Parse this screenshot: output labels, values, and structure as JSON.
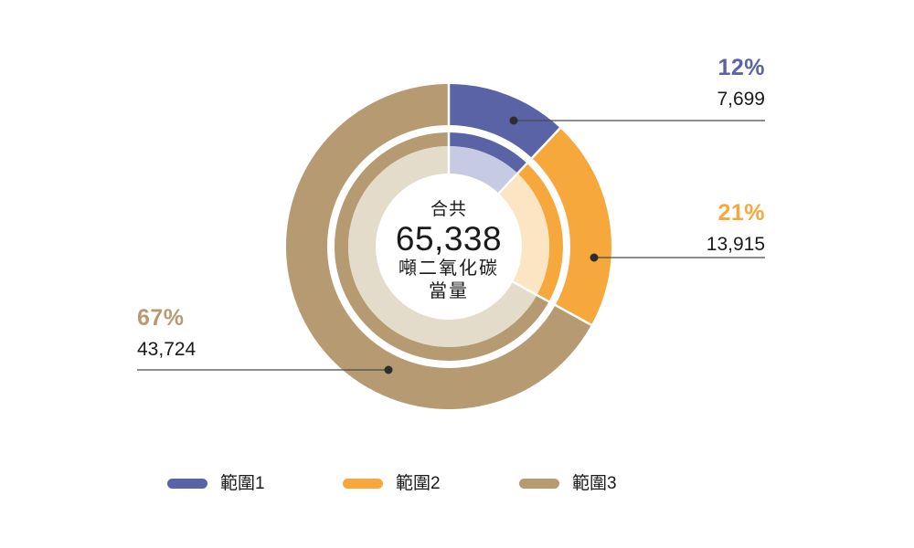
{
  "chart_data": {
    "type": "donut",
    "title": "",
    "total": 65338,
    "center": {
      "caption": "合共",
      "total_label": "65,338",
      "unit_line1": "噸二氧化碳",
      "unit_line2": "當量"
    },
    "start_angle_deg": 0,
    "direction": "clockwise",
    "legend_position": "bottom",
    "rings_note": "outer thick ring + thin middle ring in full color, inner ring in pale color, white center",
    "slices": [
      {
        "label": "範圍1",
        "percent": 12,
        "percent_label": "12%",
        "value": 7699,
        "value_label": "7,699",
        "color": "#5A63A6",
        "pale_color": "#C7CAE3"
      },
      {
        "label": "範圍2",
        "percent": 21,
        "percent_label": "21%",
        "value": 13915,
        "value_label": "13,915",
        "color": "#F6A83C",
        "pale_color": "#FCE5C2"
      },
      {
        "label": "範圍3",
        "percent": 67,
        "percent_label": "67%",
        "value": 43724,
        "value_label": "43,724",
        "color": "#B69B72",
        "pale_color": "#E4DCCB"
      }
    ]
  },
  "colors": {
    "background": "#FFFFFF",
    "text": "#1A1A1A",
    "callout_line": "#4A4A4A",
    "callout_dot": "#2E2E2E",
    "separator": "#FFFFFF"
  }
}
